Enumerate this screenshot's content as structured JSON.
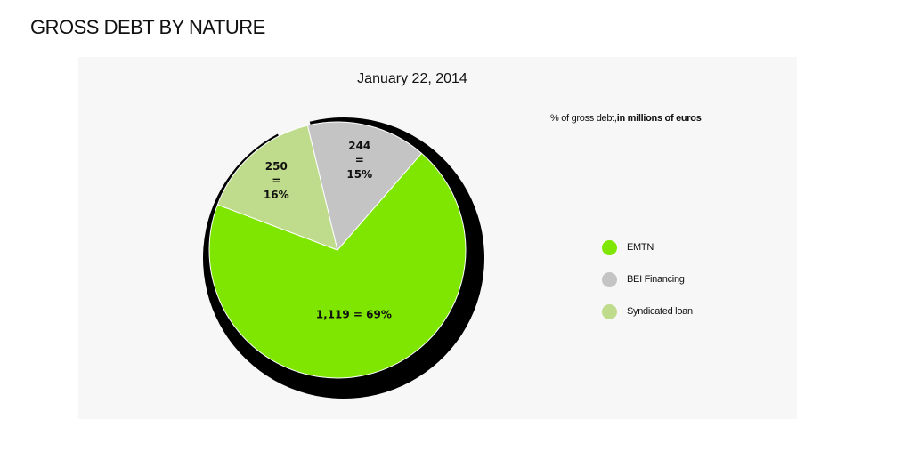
{
  "header": {
    "title": "GROSS DEBT BY NATURE"
  },
  "chart_data": {
    "type": "pie",
    "title": "January 22, 2014",
    "subtitle_prefix": "% of gross debt,",
    "subtitle_bold": "in millions of euros",
    "legend_position": "right",
    "slices": [
      {
        "name": "EMTN",
        "value": 1119,
        "percent": 69,
        "label": "1,119 = 69%",
        "color": "#7ee600"
      },
      {
        "name": "BEI Financing",
        "value": 244,
        "percent": 15,
        "label_lines": [
          "244",
          "=",
          "15%"
        ],
        "color": "#c4c4c4"
      },
      {
        "name": "Syndicated loan",
        "value": 250,
        "percent": 16,
        "label_lines": [
          "250",
          "=",
          "16%"
        ],
        "color": "#bfdc8c"
      }
    ],
    "ring_color": "#000000"
  }
}
